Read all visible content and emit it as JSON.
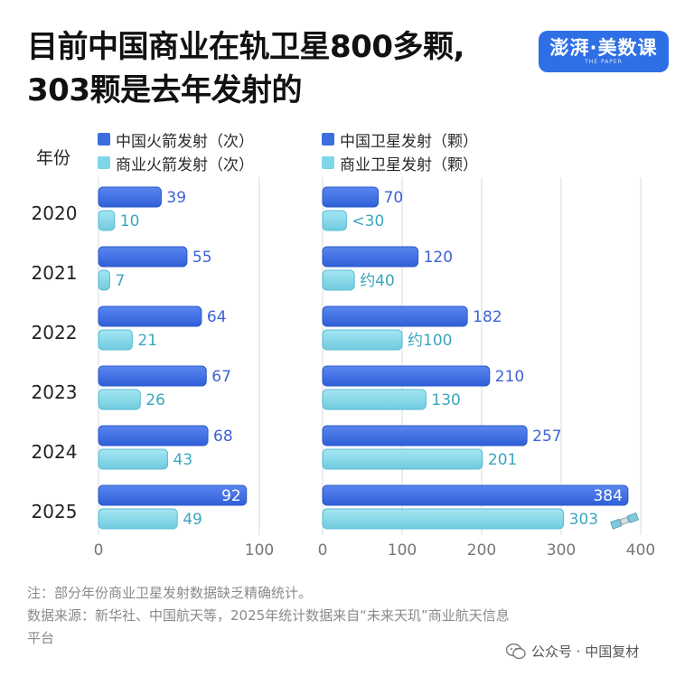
{
  "title_lines": [
    "目前中国商业在轨卫星800多颗,",
    "303颗是去年发射的"
  ],
  "logo": {
    "main": "澎湃·美数课",
    "sub": "THE PAPER"
  },
  "year_header": "年份",
  "legend": {
    "left": [
      {
        "label": "中国火箭发射（次）",
        "color": "#3b6fe0"
      },
      {
        "label": "商业火箭发射（次）",
        "color": "#7ed6e8"
      }
    ],
    "right": [
      {
        "label": "中国卫星发射（颗）",
        "color": "#3b6fe0"
      },
      {
        "label": "商业卫星发射（颗）",
        "color": "#7ed6e8"
      }
    ]
  },
  "chart_data": [
    {
      "type": "bar",
      "orientation": "horizontal",
      "categories": [
        "2020",
        "2021",
        "2022",
        "2023",
        "2024",
        "2025"
      ],
      "series": [
        {
          "name": "中国火箭发射（次）",
          "values": [
            39,
            55,
            64,
            67,
            68,
            92
          ],
          "labels": [
            "39",
            "55",
            "64",
            "67",
            "68",
            "92"
          ],
          "color": "#3b6fe0"
        },
        {
          "name": "商业火箭发射（次）",
          "values": [
            10,
            7,
            21,
            26,
            43,
            49
          ],
          "labels": [
            "10",
            "7",
            "21",
            "26",
            "43",
            "49"
          ],
          "color": "#7ed6e8"
        }
      ],
      "xlim": [
        0,
        100
      ],
      "xticks": [
        "0",
        "100"
      ]
    },
    {
      "type": "bar",
      "orientation": "horizontal",
      "categories": [
        "2020",
        "2021",
        "2022",
        "2023",
        "2024",
        "2025"
      ],
      "series": [
        {
          "name": "中国卫星发射（颗）",
          "values": [
            70,
            120,
            182,
            210,
            257,
            384
          ],
          "labels": [
            "70",
            "120",
            "182",
            "210",
            "257",
            "384"
          ],
          "color": "#3b6fe0"
        },
        {
          "name": "商业卫星发射（颗）",
          "values": [
            30,
            40,
            100,
            130,
            201,
            303
          ],
          "labels": [
            "<30",
            "约40",
            "约100",
            "130",
            "201",
            "303"
          ],
          "color": "#7ed6e8"
        }
      ],
      "xlim": [
        0,
        400
      ],
      "xticks": [
        "0",
        "100",
        "200",
        "300",
        "400"
      ]
    }
  ],
  "notes": [
    "注：部分年份商业卫星发射数据缺乏精确统计。",
    "数据来源：新华社、中国航天等，2025年统计数据来自“未来天玑”商业航天信息",
    "平台"
  ],
  "footer": {
    "label": "公众号 · 中国复材",
    "icon": "wechat-icon"
  }
}
